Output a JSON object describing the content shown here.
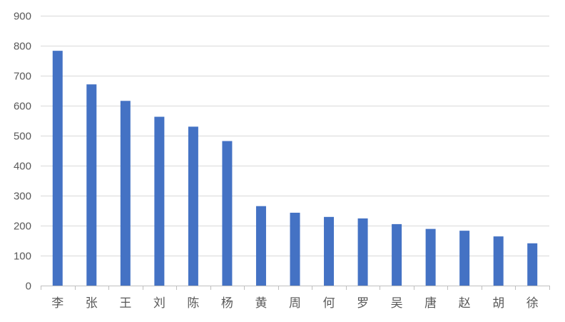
{
  "chart_data": {
    "type": "bar",
    "title": "",
    "xlabel": "",
    "ylabel": "",
    "categories": [
      "李",
      "张",
      "王",
      "刘",
      "陈",
      "杨",
      "黄",
      "周",
      "何",
      "罗",
      "吴",
      "唐",
      "赵",
      "胡",
      "徐"
    ],
    "values": [
      783,
      671,
      616,
      563,
      530,
      482,
      265,
      243,
      229,
      224,
      205,
      189,
      183,
      164,
      141
    ],
    "ylim": [
      0,
      900
    ],
    "yticks": [
      0,
      100,
      200,
      300,
      400,
      500,
      600,
      700,
      800,
      900
    ],
    "grid": true,
    "legend": "none",
    "bar_color": "#4472c4"
  }
}
